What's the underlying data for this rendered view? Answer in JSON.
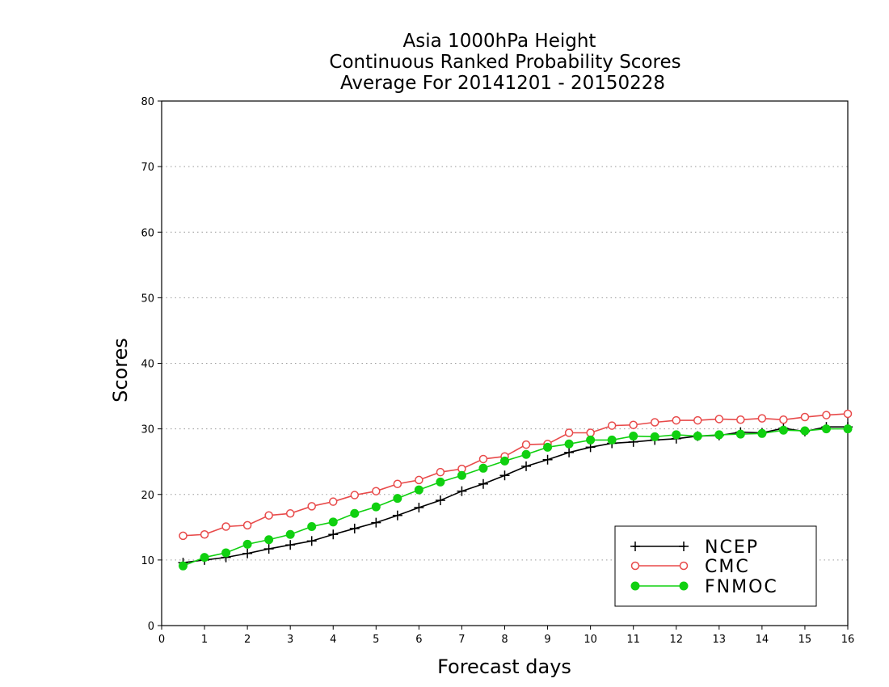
{
  "chart_data": {
    "type": "line",
    "title": [
      "Asia 1000hPa Height",
      "Continuous Ranked Probability Scores",
      "Average For 20141201 - 20150228"
    ],
    "xlabel": "Forecast days",
    "ylabel": "Scores",
    "xlim": [
      0,
      16
    ],
    "ylim": [
      0,
      80
    ],
    "xticks": [
      "0",
      "1",
      "2",
      "3",
      "4",
      "5",
      "6",
      "7",
      "8",
      "9",
      "10",
      "11",
      "12",
      "13",
      "14",
      "15",
      "16"
    ],
    "yticks": [
      "0",
      "10",
      "20",
      "30",
      "40",
      "50",
      "60",
      "70",
      "80"
    ],
    "grid": "horizontal-dotted",
    "legend_position": "bottom-right",
    "x": [
      0.5,
      1,
      1.5,
      2,
      2.5,
      3,
      3.5,
      4,
      4.5,
      5,
      5.5,
      6,
      6.5,
      7,
      7.5,
      8,
      8.5,
      9,
      9.5,
      10,
      10.5,
      11,
      11.5,
      12,
      12.5,
      13,
      13.5,
      14,
      14.5,
      15,
      15.5,
      16
    ],
    "series": [
      {
        "name": "NCEP",
        "color": "#000000",
        "marker": "plus",
        "values": [
          9.6,
          10.0,
          10.4,
          11.0,
          11.7,
          12.3,
          12.9,
          13.9,
          14.8,
          15.7,
          16.8,
          18.0,
          19.1,
          20.5,
          21.6,
          22.9,
          24.3,
          25.3,
          26.4,
          27.2,
          27.8,
          28.0,
          28.3,
          28.5,
          28.9,
          29.0,
          29.5,
          29.4,
          30.1,
          29.6,
          30.3,
          30.3
        ]
      },
      {
        "name": "CMC",
        "color": "#e84a4a",
        "marker": "open-circle",
        "values": [
          13.7,
          13.9,
          15.1,
          15.3,
          16.8,
          17.1,
          18.2,
          18.9,
          19.9,
          20.5,
          21.6,
          22.2,
          23.4,
          23.9,
          25.4,
          25.8,
          27.6,
          27.7,
          29.4,
          29.4,
          30.5,
          30.6,
          31.0,
          31.3,
          31.3,
          31.5,
          31.4,
          31.6,
          31.4,
          31.8,
          32.1,
          32.3
        ]
      },
      {
        "name": "FNMOC",
        "color": "#10d010",
        "marker": "filled-circle",
        "values": [
          9.1,
          10.4,
          11.1,
          12.4,
          13.1,
          13.9,
          15.1,
          15.8,
          17.1,
          18.1,
          19.4,
          20.7,
          21.9,
          22.9,
          24.0,
          25.1,
          26.1,
          27.2,
          27.7,
          28.3,
          28.3,
          28.9,
          28.8,
          29.1,
          28.9,
          29.1,
          29.2,
          29.3,
          29.8,
          29.7,
          30.0,
          30.0
        ]
      }
    ]
  }
}
